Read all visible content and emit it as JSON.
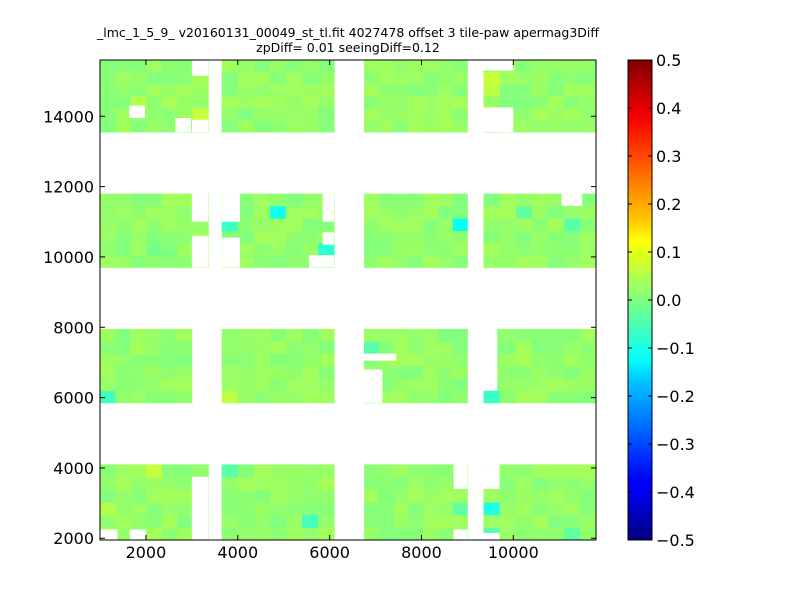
{
  "chart_data": {
    "type": "heatmap",
    "title_lines": [
      "_lmc_1_5_9_ v20160131_00049_st_tl.fit 4027478 offset 3 tile-paw apermag3Diff",
      "zpDiff= 0.01 seeingDiff=0.12"
    ],
    "xlabel": "",
    "ylabel": "",
    "xlim": [
      1000,
      11800
    ],
    "ylim": [
      1950,
      15600
    ],
    "x_ticks": [
      2000,
      4000,
      6000,
      8000,
      10000
    ],
    "y_ticks": [
      2000,
      4000,
      6000,
      8000,
      10000,
      12000,
      14000
    ],
    "cell_size": 340,
    "colorbar": {
      "range": [
        -0.5,
        0.5
      ],
      "ticks": [
        0.5,
        0.4,
        0.3,
        0.2,
        0.1,
        0.0,
        -0.1,
        -0.2,
        -0.3,
        -0.4,
        -0.5
      ],
      "tick_labels": [
        "0.5",
        "0.4",
        "0.3",
        "0.2",
        "0.1",
        "0.0",
        "−0.1",
        "−0.2",
        "−0.3",
        "−0.4",
        "−0.5"
      ],
      "colormap": "jet"
    },
    "detectors": [
      {
        "x": [
          1000,
          3360
        ],
        "y": [
          13550,
          15600
        ]
      },
      {
        "x": [
          3650,
          6100
        ],
        "y": [
          13550,
          15600
        ]
      },
      {
        "x": [
          6750,
          9000
        ],
        "y": [
          13550,
          15600
        ]
      },
      {
        "x": [
          9350,
          11800
        ],
        "y": [
          13550,
          15600
        ]
      },
      {
        "x": [
          1000,
          3360
        ],
        "y": [
          9700,
          11800
        ]
      },
      {
        "x": [
          3650,
          6100
        ],
        "y": [
          9700,
          11800
        ]
      },
      {
        "x": [
          6750,
          9000
        ],
        "y": [
          9700,
          11800
        ]
      },
      {
        "x": [
          9350,
          11800
        ],
        "y": [
          9700,
          11800
        ]
      },
      {
        "x": [
          1000,
          3000
        ],
        "y": [
          5850,
          7950
        ]
      },
      {
        "x": [
          3650,
          6100
        ],
        "y": [
          5850,
          7950
        ]
      },
      {
        "x": [
          6750,
          9000
        ],
        "y": [
          5850,
          7950
        ]
      },
      {
        "x": [
          9350,
          11800
        ],
        "y": [
          5850,
          7950
        ]
      },
      {
        "x": [
          1000,
          3360
        ],
        "y": [
          1950,
          4100
        ]
      },
      {
        "x": [
          3650,
          6100
        ],
        "y": [
          1950,
          4100
        ]
      },
      {
        "x": [
          6750,
          9000
        ],
        "y": [
          1950,
          4100
        ]
      },
      {
        "x": [
          9350,
          11800
        ],
        "y": [
          1950,
          4100
        ]
      }
    ],
    "base_value": 0.02,
    "highlights": [
      {
        "x": 3150,
        "y": 14150,
        "value": 0.07
      },
      {
        "x": 2650,
        "y": 14500,
        "value": 0.04
      },
      {
        "x": 1700,
        "y": 14350,
        "value": 0.05
      },
      {
        "x": 9550,
        "y": 15000,
        "value": 0.07
      },
      {
        "x": 9550,
        "y": 14700,
        "value": 0.06
      },
      {
        "x": 10650,
        "y": 14000,
        "value": 0.04
      },
      {
        "x": 2100,
        "y": 10300,
        "value": -0.01
      },
      {
        "x": 4850,
        "y": 11350,
        "value": -0.11
      },
      {
        "x": 5900,
        "y": 10300,
        "value": -0.08
      },
      {
        "x": 3850,
        "y": 11000,
        "value": -0.07
      },
      {
        "x": 8800,
        "y": 11000,
        "value": -0.12
      },
      {
        "x": 10350,
        "y": 11200,
        "value": -0.03
      },
      {
        "x": 11400,
        "y": 11000,
        "value": -0.04
      },
      {
        "x": 1200,
        "y": 6000,
        "value": -0.06
      },
      {
        "x": 3900,
        "y": 6000,
        "value": 0.06
      },
      {
        "x": 7000,
        "y": 7500,
        "value": -0.04
      },
      {
        "x": 9550,
        "y": 6000,
        "value": -0.07
      },
      {
        "x": 10350,
        "y": 7100,
        "value": 0.04
      },
      {
        "x": 2200,
        "y": 3900,
        "value": 0.07
      },
      {
        "x": 3800,
        "y": 3900,
        "value": -0.04
      },
      {
        "x": 5700,
        "y": 2500,
        "value": -0.06
      },
      {
        "x": 8800,
        "y": 2700,
        "value": -0.03
      },
      {
        "x": 9550,
        "y": 2950,
        "value": -0.1
      },
      {
        "x": 9550,
        "y": 2300,
        "value": -0.04
      },
      {
        "x": 1200,
        "y": 2700,
        "value": 0.05
      },
      {
        "x": 11300,
        "y": 2300,
        "value": -0.03
      }
    ],
    "holes": [
      {
        "x": [
          1640,
          1980
        ],
        "y": [
          13950,
          14300
        ]
      },
      {
        "x": [
          2640,
          2980
        ],
        "y": [
          13550,
          13950
        ]
      },
      {
        "x": [
          3000,
          3360
        ],
        "y": [
          15150,
          15600
        ]
      },
      {
        "x": [
          3000,
          3360
        ],
        "y": [
          13550,
          13900
        ]
      },
      {
        "x": [
          9350,
          10000
        ],
        "y": [
          15300,
          15600
        ]
      },
      {
        "x": [
          9350,
          10000
        ],
        "y": [
          13550,
          14250
        ]
      },
      {
        "x": [
          3000,
          3360
        ],
        "y": [
          9700,
          10600
        ]
      },
      {
        "x": [
          3000,
          3360
        ],
        "y": [
          11000,
          11800
        ]
      },
      {
        "x": [
          3650,
          4050
        ],
        "y": [
          9700,
          10550
        ]
      },
      {
        "x": [
          3650,
          4050
        ],
        "y": [
          11000,
          11800
        ]
      },
      {
        "x": [
          5550,
          6100
        ],
        "y": [
          9700,
          10050
        ]
      },
      {
        "x": [
          5850,
          6100
        ],
        "y": [
          10350,
          10700
        ]
      },
      {
        "x": [
          5850,
          6100
        ],
        "y": [
          11000,
          11800
        ]
      },
      {
        "x": [
          11050,
          11500
        ],
        "y": [
          11450,
          11800
        ]
      },
      {
        "x": [
          9000,
          9000
        ],
        "y": [
          9700,
          9700
        ]
      },
      {
        "x": [
          6750,
          7150
        ],
        "y": [
          6200,
          6800
        ]
      },
      {
        "x": [
          6750,
          7150
        ],
        "y": [
          5850,
          6200
        ]
      },
      {
        "x": [
          6750,
          7450
        ],
        "y": [
          7050,
          7250
        ]
      },
      {
        "x": [
          9350,
          9650
        ],
        "y": [
          6200,
          7950
        ]
      },
      {
        "x": [
          3000,
          3360
        ],
        "y": [
          1950,
          3750
        ]
      },
      {
        "x": [
          1000,
          1380
        ],
        "y": [
          1950,
          2250
        ]
      },
      {
        "x": [
          1650,
          2000
        ],
        "y": [
          1950,
          2250
        ]
      },
      {
        "x": [
          8700,
          9000
        ],
        "y": [
          3400,
          4100
        ]
      },
      {
        "x": [
          8700,
          9000
        ],
        "y": [
          1950,
          2250
        ]
      },
      {
        "x": [
          9350,
          9700
        ],
        "y": [
          3400,
          4100
        ]
      },
      {
        "x": [
          9350,
          9700
        ],
        "y": [
          1950,
          2150
        ]
      }
    ]
  }
}
